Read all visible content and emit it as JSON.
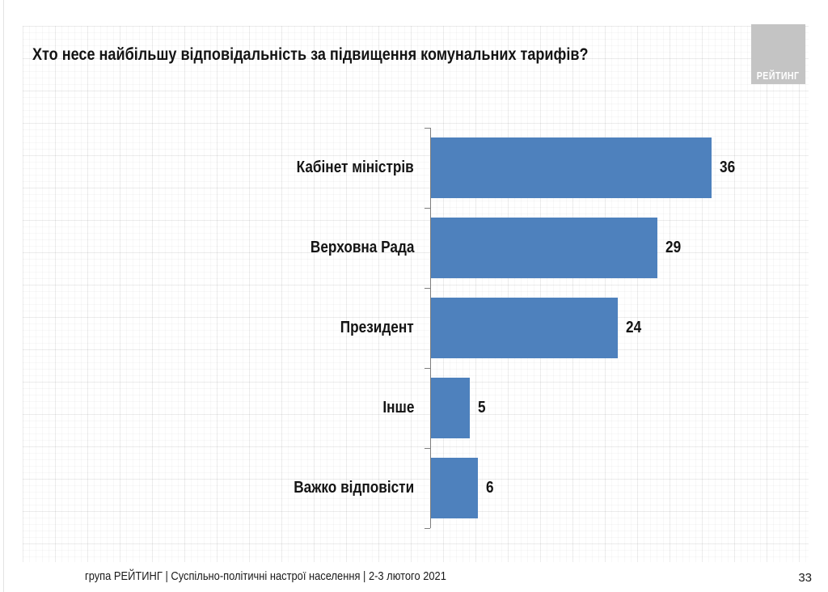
{
  "slide": {
    "title": "Хто несе найбільшу відповідальність за підвищення комунальних тарифів?",
    "logo_text": "РЕЙТИНГ",
    "footer": "група РЕЙТИНГ | Суспільно-політичні настрої населення  | 2-3 лютого 2021",
    "page_number": "33"
  },
  "colors": {
    "bar": "#4E81BD",
    "logo_bg": "#C4C4C4",
    "text": "#141414",
    "axis": "#7F7F7F"
  },
  "chart_data": {
    "type": "bar",
    "orientation": "horizontal",
    "title": "Хто несе найбільшу відповідальність за підвищення комунальних тарифів?",
    "categories": [
      "Кабінет міністрів",
      "Верховна Рада",
      "Президент",
      "Інше",
      "Важко відповісти"
    ],
    "values": [
      36,
      29,
      24,
      5,
      6
    ],
    "xlabel": "",
    "ylabel": "",
    "xlim": [
      0,
      36
    ],
    "grid": false,
    "data_labels": true,
    "legend": false,
    "bar_color": "#4E81BD"
  }
}
